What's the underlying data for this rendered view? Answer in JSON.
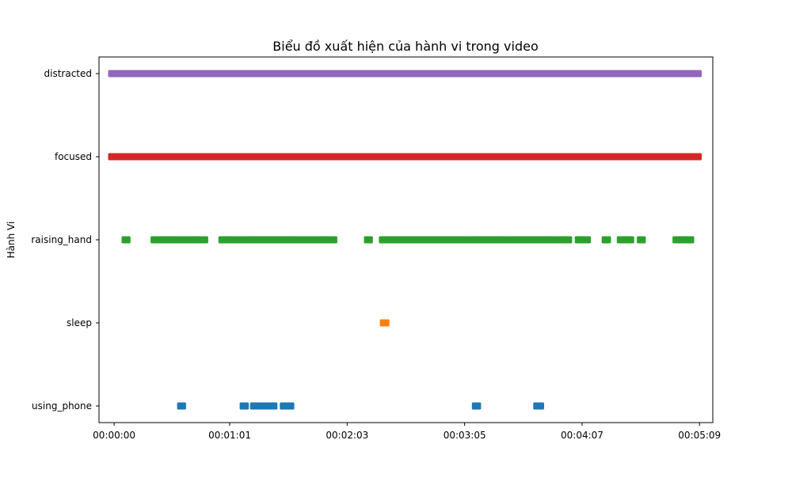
{
  "chart_data": {
    "type": "scatter",
    "title": "Biểu đồ xuất hiện của hành vi trong video",
    "xlabel": "",
    "ylabel": "Hành Vi",
    "x_unit": "seconds",
    "xlim": [
      -8,
      316
    ],
    "x_ticks": [
      {
        "value": 0,
        "label": "00:00:00"
      },
      {
        "value": 61,
        "label": "00:01:01"
      },
      {
        "value": 123,
        "label": "00:02:03"
      },
      {
        "value": 185,
        "label": "00:03:05"
      },
      {
        "value": 247,
        "label": "00:04:07"
      },
      {
        "value": 309,
        "label": "00:05:09"
      }
    ],
    "categories": [
      "using_phone",
      "sleep",
      "raising_hand",
      "focused",
      "distracted"
    ],
    "grid": false,
    "legend": "none",
    "series": [
      {
        "category": "distracted",
        "color": "#9467bd",
        "intervals": [
          [
            -1.5,
            308.5
          ]
        ]
      },
      {
        "category": "focused",
        "color": "#d62728",
        "intervals": [
          [
            -1.5,
            308.5
          ]
        ]
      },
      {
        "category": "raising_hand",
        "color": "#2ca02c",
        "intervals": [
          [
            5.6,
            7.0
          ],
          [
            20.9,
            22.3
          ],
          [
            22.3,
            34.8
          ],
          [
            35.7,
            40.1
          ],
          [
            40.8,
            48.0
          ],
          [
            56.7,
            63.4
          ],
          [
            65.6,
            70.9
          ],
          [
            70.9,
            101.2
          ],
          [
            101.8,
            104.9
          ],
          [
            106.0,
            116.1
          ],
          [
            133.5,
            134.9
          ],
          [
            141.4,
            186.7
          ],
          [
            187.2,
            207.5
          ],
          [
            208.0,
            233.6
          ],
          [
            235.2,
            240.1
          ],
          [
            244.8,
            250.0
          ],
          [
            259.0,
            260.6
          ],
          [
            267.0,
            272.8
          ],
          [
            277.6,
            279.0
          ],
          [
            296.4,
            304.5
          ]
        ]
      },
      {
        "category": "sleep",
        "color": "#ff7f0e",
        "intervals": [
          [
            141.9,
            143.6
          ]
        ]
      },
      {
        "category": "using_phone",
        "color": "#1f77b4",
        "intervals": [
          [
            34.9,
            36.3
          ],
          [
            67.9,
            69.4
          ],
          [
            73.4,
            84.5
          ],
          [
            89.1,
            93.4
          ],
          [
            190.5,
            192.0
          ],
          [
            222.9,
            225.3
          ]
        ]
      }
    ]
  }
}
